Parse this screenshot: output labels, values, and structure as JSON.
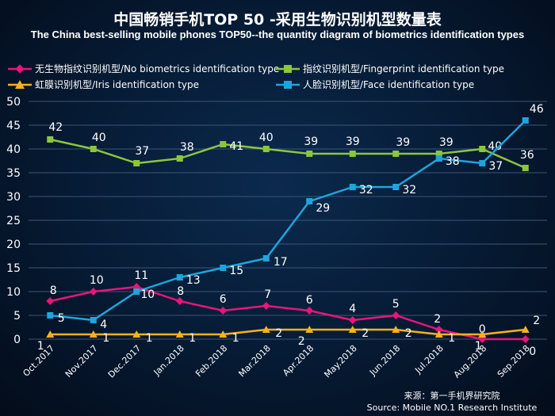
{
  "chart_data": {
    "type": "line",
    "title": "中国畅销手机TOP 50 -采用生物识别机型数量表",
    "subtitle": "The China best-selling mobile phones TOP50--the quantity diagram of biometrics identification types",
    "categories": [
      "Oct.2017",
      "Nov.2017",
      "Dec.2017",
      "Jan.2018",
      "Feb.2018",
      "Mar.2018",
      "Apr.2018",
      "May.2018",
      "Jun.2018",
      "Jul.2018",
      "Aug.2018",
      "Sep.2018"
    ],
    "ylim": [
      0,
      50
    ],
    "yticks": [
      0,
      5,
      10,
      15,
      20,
      25,
      30,
      35,
      40,
      45,
      50
    ],
    "grid": true,
    "legend_position": "top",
    "series": [
      {
        "name": "无生物指纹识别机型/No biometrics identification type",
        "color": "#e8157a",
        "marker": "diamond",
        "values": [
          8,
          10,
          11,
          8,
          6,
          7,
          6,
          4,
          5,
          2,
          0,
          0
        ]
      },
      {
        "name": "指纹识别机型/Fingerprint identification type",
        "color": "#8cc63e",
        "marker": "square",
        "values": [
          42,
          40,
          37,
          38,
          41,
          40,
          39,
          39,
          39,
          39,
          40,
          36
        ]
      },
      {
        "name": "虹膜识别机型/Iris identification type",
        "color": "#f5b21c",
        "marker": "triangle",
        "values": [
          1,
          1,
          1,
          1,
          1,
          2,
          2,
          2,
          2,
          1,
          1,
          2
        ]
      },
      {
        "name": "人脸识别机型/Face identification type",
        "color": "#1da6dd",
        "marker": "square",
        "values": [
          5,
          4,
          10,
          13,
          15,
          17,
          29,
          32,
          32,
          38,
          37,
          46
        ]
      }
    ],
    "source": [
      "来源：第一手机界研究院",
      "Source: Mobile NO.1 Research Institute"
    ]
  }
}
